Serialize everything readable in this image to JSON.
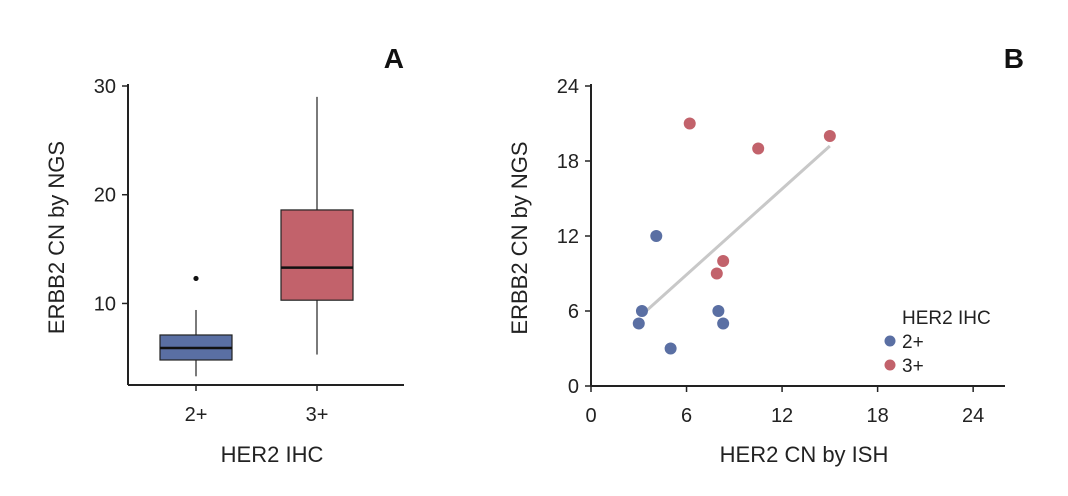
{
  "chart_data": [
    {
      "panel": "A",
      "type": "box",
      "xlabel": "HER2 IHC",
      "ylabel": "ERBB2 CN by NGS",
      "ylim": [
        2.5,
        30
      ],
      "yticks": [
        10,
        20,
        30
      ],
      "categories": [
        "2+",
        "3+"
      ],
      "colors": [
        "#5a6fa3",
        "#c2626b"
      ],
      "boxes": [
        {
          "category": "2+",
          "whisker_low": 3.3,
          "q1": 4.8,
          "median": 5.9,
          "q3": 7.1,
          "whisker_high": 9.4,
          "outliers": [
            12.3
          ]
        },
        {
          "category": "3+",
          "whisker_low": 5.3,
          "q1": 10.3,
          "median": 13.3,
          "q3": 18.6,
          "whisker_high": 29.0,
          "outliers": []
        }
      ]
    },
    {
      "panel": "B",
      "type": "scatter",
      "xlabel": "HER2 CN by ISH",
      "ylabel": "ERBB2 CN by NGS",
      "xlim": [
        0,
        26
      ],
      "ylim": [
        0,
        24
      ],
      "xticks": [
        0,
        6,
        12,
        18,
        24
      ],
      "yticks": [
        0,
        6,
        12,
        18,
        24
      ],
      "legend": {
        "title": "HER2 IHC",
        "position": "bottom-right"
      },
      "series": [
        {
          "name": "2+",
          "color": "#5a6fa3",
          "points": [
            [
              3.0,
              5.0
            ],
            [
              3.2,
              6.0
            ],
            [
              4.1,
              12.0
            ],
            [
              5.0,
              3.0
            ],
            [
              8.0,
              6.0
            ],
            [
              8.3,
              5.0
            ]
          ]
        },
        {
          "name": "3+",
          "color": "#c2626b",
          "points": [
            [
              6.2,
              21.0
            ],
            [
              7.9,
              9.0
            ],
            [
              8.3,
              10.0
            ],
            [
              10.5,
              19.0
            ],
            [
              15.0,
              20.0
            ]
          ]
        }
      ],
      "trendline": {
        "color": "#c8c8c8",
        "from": [
          3.2,
          5.7
        ],
        "to": [
          15.0,
          19.2
        ]
      }
    }
  ]
}
